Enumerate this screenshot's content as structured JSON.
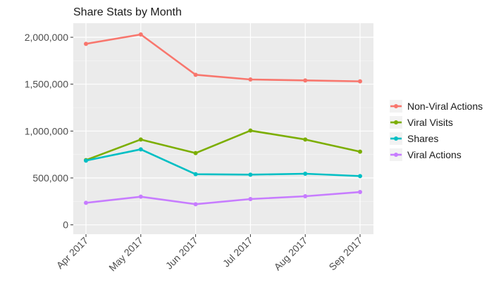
{
  "chart_data": {
    "type": "line",
    "title": "Share Stats by Month",
    "xlabel": "",
    "ylabel": "",
    "categories": [
      "Apr 2017",
      "May 2017",
      "Jun 2017",
      "Jul 2017",
      "Aug 2017",
      "Sep 2017"
    ],
    "y_ticks": [
      0,
      500000,
      1000000,
      1500000,
      2000000
    ],
    "y_tick_labels": [
      "0",
      "500,000",
      "1,000,000",
      "1,500,000",
      "2,000,000"
    ],
    "ylim": [
      -100000,
      2150000
    ],
    "grid": true,
    "legend_position": "right",
    "series": [
      {
        "name": "Non-Viral Actions",
        "color": "#F8766D",
        "values": [
          1930000,
          2030000,
          1600000,
          1550000,
          1540000,
          1530000
        ]
      },
      {
        "name": "Viral Visits",
        "color": "#7CAE00",
        "values": [
          690000,
          910000,
          765000,
          1005000,
          910000,
          780000
        ]
      },
      {
        "name": "Shares",
        "color": "#00BFC4",
        "values": [
          685000,
          805000,
          540000,
          535000,
          545000,
          520000
        ]
      },
      {
        "name": "Viral Actions",
        "color": "#C77CFF",
        "values": [
          235000,
          300000,
          220000,
          275000,
          305000,
          350000
        ]
      }
    ]
  }
}
